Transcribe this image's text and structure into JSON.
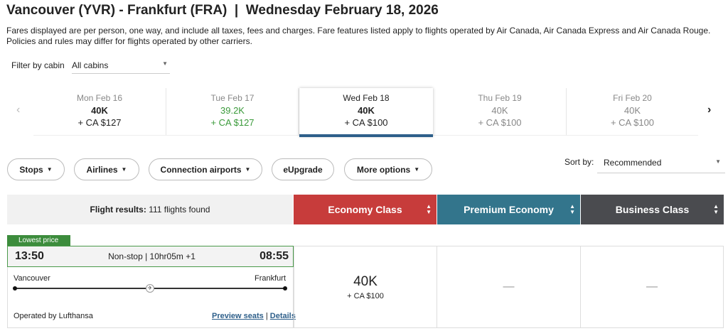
{
  "title": "Vancouver (YVR) - Frankfurt (FRA)  |  Wednesday February 18, 2026",
  "disclaimer": "Fares displayed are per person, one way, and include all taxes, fees and charges. Fare features listed apply to flights operated by Air Canada, Air Canada Express and Air Canada Rouge. Policies and rules may differ for flights operated by other carriers.",
  "filter": {
    "label": "Filter by cabin",
    "value": "All cabins"
  },
  "days": [
    {
      "date": "Mon Feb 16",
      "points": "40K",
      "cash": "+ CA $127"
    },
    {
      "date": "Tue Feb 17",
      "points": "39.2K",
      "cash": "+ CA $127"
    },
    {
      "date": "Wed Feb 18",
      "points": "40K",
      "cash": "+ CA $100"
    },
    {
      "date": "Thu Feb 19",
      "points": "40K",
      "cash": "+ CA $100"
    },
    {
      "date": "Fri Feb 20",
      "points": "40K",
      "cash": "+ CA $100"
    }
  ],
  "nav": {
    "prev": "‹",
    "next": "›"
  },
  "filters": [
    "Stops",
    "Airlines",
    "Connection airports",
    "eUpgrade",
    "More options"
  ],
  "sort": {
    "label": "Sort by:",
    "value": "Recommended"
  },
  "results": {
    "label": "Flight results:",
    "count": "111 flights found"
  },
  "cabins": [
    {
      "name": "Economy Class",
      "color": "#c73c3b"
    },
    {
      "name": "Premium Economy",
      "color": "#33758c"
    },
    {
      "name": "Business Class",
      "color": "#4a4b4f"
    }
  ],
  "flight": {
    "tag": "Lowest price",
    "depart": "13:50",
    "arrive": "08:55",
    "summary": "Non-stop | 10hr05m +1",
    "origin": "Vancouver",
    "destination": "Frankfurt",
    "operator": "Operated by Lufthansa",
    "preview": "Preview seats",
    "sep": "|",
    "details": "Details",
    "economy": {
      "points": "40K",
      "cash": "+ CA $100"
    },
    "premium": "—",
    "business": "—"
  }
}
